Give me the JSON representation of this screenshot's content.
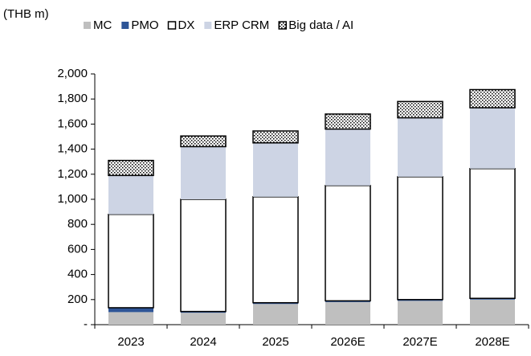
{
  "chart_data": {
    "type": "stacked_bar",
    "unit_label": "(THB m)",
    "categories": [
      "2023",
      "2024",
      "2025",
      "2026E",
      "2027E",
      "2028E"
    ],
    "series": [
      {
        "name": "MC",
        "color": "#bfbfbf",
        "values": [
          100,
          95,
          165,
          180,
          190,
          200
        ]
      },
      {
        "name": "PMO",
        "color": "#2e5597",
        "values": [
          35,
          10,
          10,
          10,
          10,
          10
        ]
      },
      {
        "name": "DX",
        "color": "#ffffff",
        "values": [
          745,
          895,
          845,
          920,
          980,
          1035
        ]
      },
      {
        "name": "ERP CRM",
        "color": "#cdd4e4",
        "values": [
          310,
          420,
          430,
          450,
          470,
          485
        ]
      },
      {
        "name": "Big data / AI",
        "color": "#ffffff",
        "pattern": "dots",
        "values": [
          120,
          85,
          95,
          120,
          130,
          145
        ]
      }
    ],
    "ylim": [
      0,
      2000
    ],
    "yticks": [
      {
        "value": 0,
        "label": "-"
      },
      200,
      400,
      600,
      800,
      {
        "value": 1000,
        "label": "1,000"
      },
      {
        "value": 1200,
        "label": "1,200"
      },
      {
        "value": 1400,
        "label": "1,400"
      },
      {
        "value": 1600,
        "label": "1,600"
      },
      {
        "value": 1800,
        "label": "1,800"
      },
      {
        "value": 2000,
        "label": "2,000"
      }
    ]
  }
}
